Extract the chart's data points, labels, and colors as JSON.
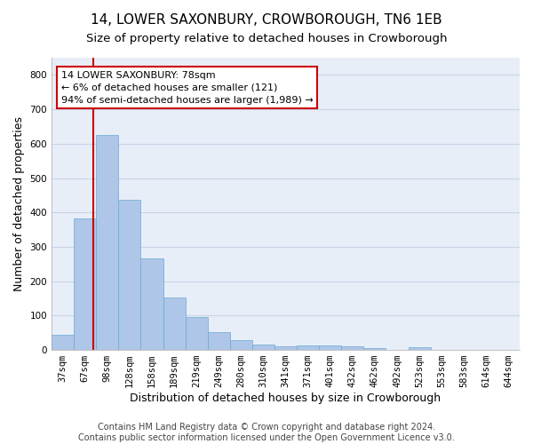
{
  "title": "14, LOWER SAXONBURY, CROWBOROUGH, TN6 1EB",
  "subtitle": "Size of property relative to detached houses in Crowborough",
  "xlabel": "Distribution of detached houses by size in Crowborough",
  "ylabel": "Number of detached properties",
  "categories": [
    "37sqm",
    "67sqm",
    "98sqm",
    "128sqm",
    "158sqm",
    "189sqm",
    "219sqm",
    "249sqm",
    "280sqm",
    "310sqm",
    "341sqm",
    "371sqm",
    "401sqm",
    "432sqm",
    "462sqm",
    "492sqm",
    "523sqm",
    "553sqm",
    "583sqm",
    "614sqm",
    "644sqm"
  ],
  "values": [
    45,
    383,
    625,
    438,
    265,
    153,
    95,
    52,
    28,
    17,
    10,
    12,
    12,
    10,
    5,
    0,
    8,
    0,
    0,
    0,
    0
  ],
  "bar_color": "#aec6e8",
  "bar_edge_color": "#6aaad4",
  "highlight_line_color": "#cc0000",
  "annotation_text": "14 LOWER SAXONBURY: 78sqm\n← 6% of detached houses are smaller (121)\n94% of semi-detached houses are larger (1,989) →",
  "annotation_box_color": "#ffffff",
  "annotation_box_edge": "#cc0000",
  "ylim": [
    0,
    850
  ],
  "yticks": [
    0,
    100,
    200,
    300,
    400,
    500,
    600,
    700,
    800
  ],
  "grid_color": "#c8d4e8",
  "background_color": "#e8eef8",
  "footer_line1": "Contains HM Land Registry data © Crown copyright and database right 2024.",
  "footer_line2": "Contains public sector information licensed under the Open Government Licence v3.0.",
  "title_fontsize": 11,
  "subtitle_fontsize": 9.5,
  "axis_label_fontsize": 9,
  "tick_fontsize": 7.5,
  "footer_fontsize": 7,
  "annotation_fontsize": 8
}
